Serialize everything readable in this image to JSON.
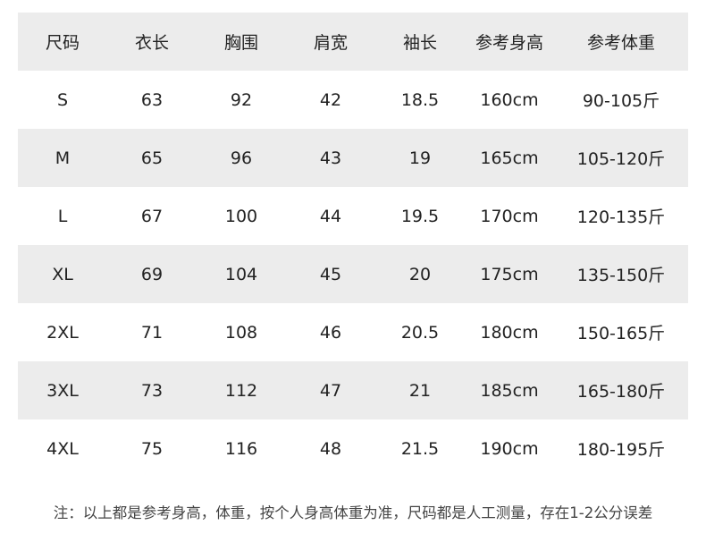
{
  "table": {
    "headers": [
      "尺码",
      "衣长",
      "胸围",
      "肩宽",
      "袖长",
      "参考身高",
      "参考体重"
    ],
    "rows": [
      [
        "S",
        "63",
        "92",
        "42",
        "18.5",
        "160cm",
        "90-105斤"
      ],
      [
        "M",
        "65",
        "96",
        "43",
        "19",
        "165cm",
        "105-120斤"
      ],
      [
        "L",
        "67",
        "100",
        "44",
        "19.5",
        "170cm",
        "120-135斤"
      ],
      [
        "XL",
        "69",
        "104",
        "45",
        "20",
        "175cm",
        "135-150斤"
      ],
      [
        "2XL",
        "71",
        "108",
        "46",
        "20.5",
        "180cm",
        "150-165斤"
      ],
      [
        "3XL",
        "73",
        "112",
        "47",
        "21",
        "185cm",
        "165-180斤"
      ],
      [
        "4XL",
        "75",
        "116",
        "48",
        "21.5",
        "190cm",
        "180-195斤"
      ]
    ]
  },
  "note": "注：以上都是参考身高，体重，按个人身高体重为准，尺码都是人工测量，存在1-2公分误差",
  "colors": {
    "stripe": "#ececec",
    "text": "#222222"
  }
}
